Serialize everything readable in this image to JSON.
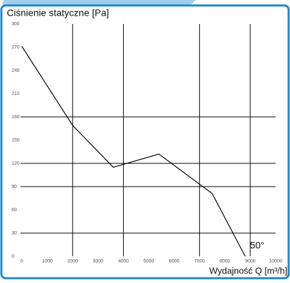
{
  "chart_data": {
    "type": "line",
    "ylabel": "Ciśnienie statyczne [Pa]",
    "xlabel": "Wydajność Q [m³/h]",
    "annotation": "50°",
    "x": [
      0,
      2000,
      3600,
      5400,
      7500,
      8800
    ],
    "series": [
      {
        "color": "#000000",
        "values": [
          271,
          169,
          115,
          132,
          81,
          0
        ]
      }
    ],
    "xlim": [
      0,
      10000
    ],
    "xticks": [
      0,
      1000,
      2000,
      3000,
      4000,
      5000,
      6000,
      7000,
      8000,
      9000,
      10000
    ],
    "ylim": [
      0,
      300
    ],
    "yticks": [
      0,
      30,
      60,
      90,
      120,
      150,
      180,
      210,
      240,
      270,
      300
    ],
    "xgrid": [
      2000,
      4000,
      7000,
      9000
    ],
    "ygrid": [
      30,
      90,
      120,
      180
    ]
  }
}
